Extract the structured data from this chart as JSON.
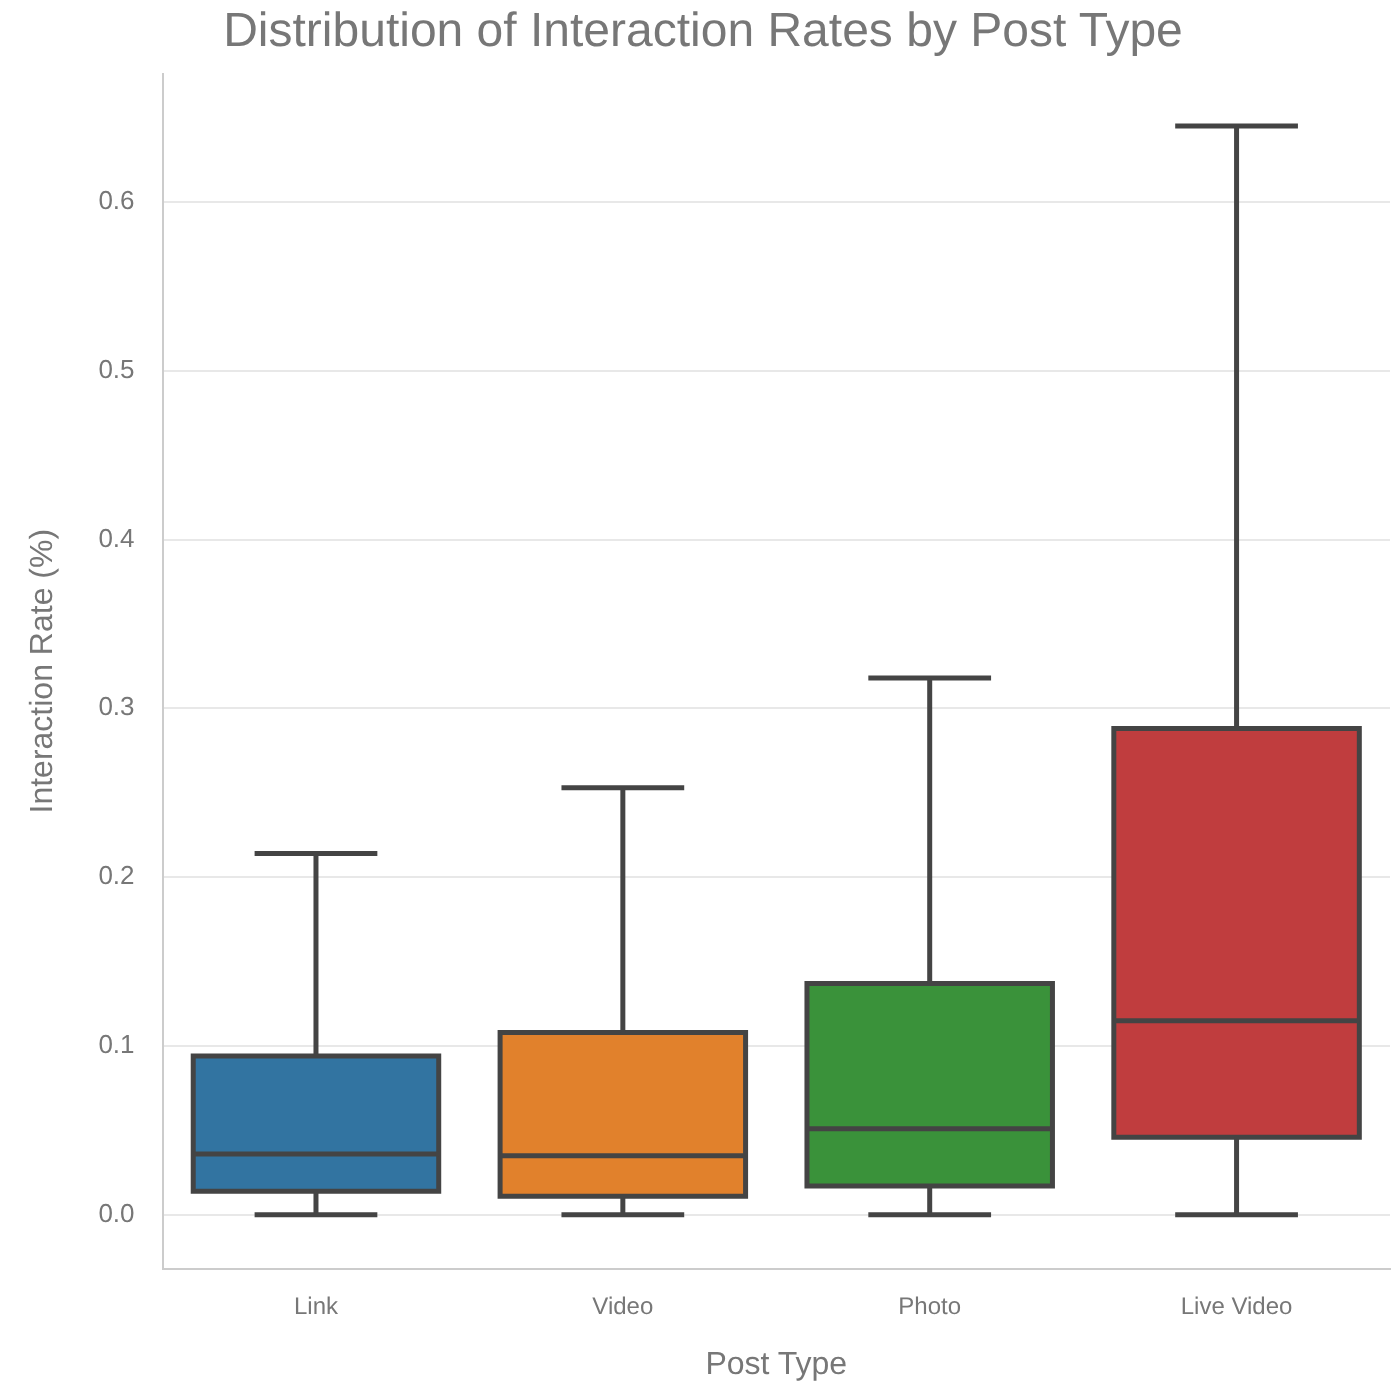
{
  "chart_data": {
    "type": "box",
    "title": "Distribution of Interaction Rates by Post Type",
    "xlabel": "Post Type",
    "ylabel": "Interaction Rate (%)",
    "categories": [
      "Link",
      "Video",
      "Photo",
      "Live Video"
    ],
    "colors": [
      "#3274a1",
      "#e1812c",
      "#3a923a",
      "#c03d3e"
    ],
    "boxes": [
      {
        "low": 0,
        "q1": 0.014,
        "median": 0.036,
        "q3": 0.094,
        "high": 0.214
      },
      {
        "low": 0,
        "q1": 0.011,
        "median": 0.035,
        "q3": 0.108,
        "high": 0.253
      },
      {
        "low": 0,
        "q1": 0.017,
        "median": 0.051,
        "q3": 0.137,
        "high": 0.318
      },
      {
        "low": 0,
        "q1": 0.046,
        "median": 0.115,
        "q3": 0.288,
        "high": 0.645
      }
    ],
    "ylim": [
      -0.032,
      0.676
    ],
    "yticks": [
      {
        "value": 0,
        "label": "0.0"
      },
      0.1,
      0.2,
      0.3,
      0.4,
      0.5,
      0.6
    ],
    "grid": "y"
  }
}
